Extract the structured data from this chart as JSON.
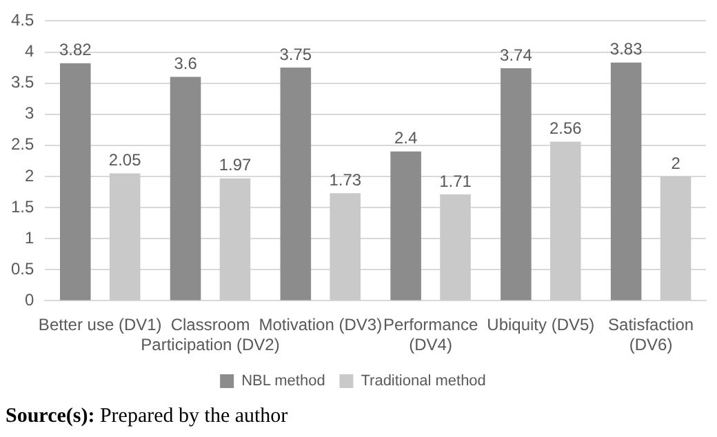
{
  "chart_data": {
    "type": "bar",
    "categories": [
      "Better use (DV1)",
      "Classroom Participation (DV2)",
      "Motivation (DV3)",
      "Performance (DV4)",
      "Ubiquity (DV5)",
      "Satisfaction (DV6)"
    ],
    "series": [
      {
        "name": "NBL method",
        "color": "#8c8c8c",
        "values": [
          3.82,
          3.6,
          3.75,
          2.4,
          3.74,
          3.83
        ]
      },
      {
        "name": "Traditional method",
        "color": "#c9c9c9",
        "values": [
          2.05,
          1.97,
          1.73,
          1.71,
          2.56,
          2
        ]
      }
    ],
    "ylim": [
      0,
      4.5
    ],
    "yticks": [
      0,
      0.5,
      1,
      1.5,
      2,
      2.5,
      3,
      3.5,
      4,
      4.5
    ],
    "grid": "y",
    "legend": "bottom",
    "data_labels": true,
    "annotations": [
      "Source(s): Prepared by the author"
    ]
  }
}
